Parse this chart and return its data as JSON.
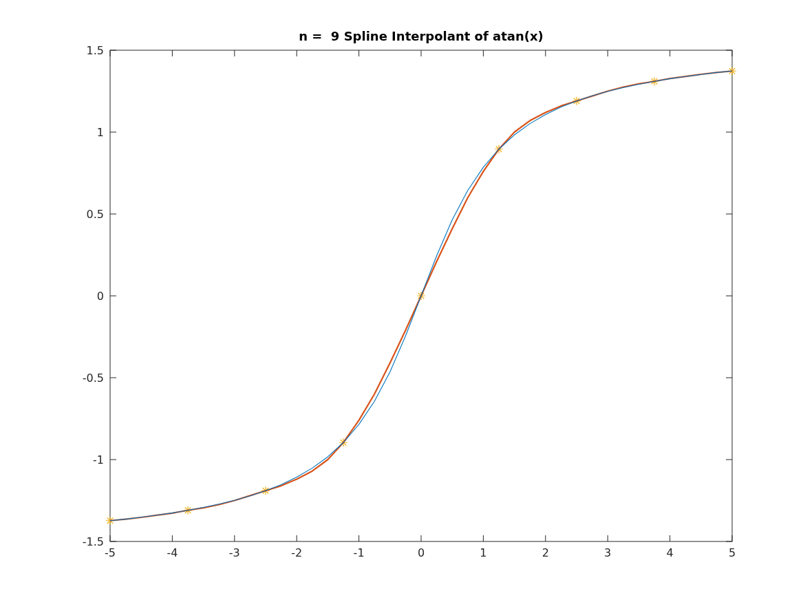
{
  "chart_data": {
    "type": "line",
    "title": "n =  9 Spline Interpolant of atan(x)",
    "x": [
      -5,
      -4.75,
      -4.5,
      -4.25,
      -4,
      -3.75,
      -3.5,
      -3.25,
      -3,
      -2.75,
      -2.5,
      -2.25,
      -2,
      -1.75,
      -1.5,
      -1.25,
      -1,
      -0.75,
      -0.5,
      -0.25,
      0,
      0.25,
      0.5,
      0.75,
      1,
      1.25,
      1.5,
      1.75,
      2,
      2.25,
      2.5,
      2.75,
      3,
      3.25,
      3.5,
      3.75,
      4,
      4.25,
      4.5,
      4.75,
      5
    ],
    "series": [
      {
        "color": "#0072bd",
        "values": [
          -1.373,
          -1.364,
          -1.352,
          -1.339,
          -1.326,
          -1.31,
          -1.292,
          -1.272,
          -1.249,
          -1.222,
          -1.19,
          -1.153,
          -1.107,
          -1.052,
          -0.983,
          -0.896,
          -0.785,
          -0.644,
          -0.464,
          -0.245,
          0,
          0.245,
          0.464,
          0.644,
          0.785,
          0.896,
          0.983,
          1.052,
          1.107,
          1.153,
          1.19,
          1.222,
          1.249,
          1.272,
          1.292,
          1.31,
          1.326,
          1.339,
          1.352,
          1.364,
          1.373
        ]
      },
      {
        "color": "#d95319",
        "values": [
          -1.373,
          -1.364,
          -1.353,
          -1.34,
          -1.327,
          -1.31,
          -1.295,
          -1.275,
          -1.25,
          -1.22,
          -1.19,
          -1.16,
          -1.12,
          -1.07,
          -1.0,
          -0.896,
          -0.76,
          -0.6,
          -0.41,
          -0.21,
          0,
          0.21,
          0.41,
          0.6,
          0.76,
          0.896,
          1.0,
          1.07,
          1.12,
          1.16,
          1.19,
          1.22,
          1.25,
          1.275,
          1.295,
          1.31,
          1.327,
          1.34,
          1.353,
          1.364,
          1.373
        ]
      },
      {
        "type": "scatter",
        "marker": "cross",
        "color": "#edb120",
        "x": [
          -5,
          -3.75,
          -2.5,
          -1.25,
          0,
          1.25,
          2.5,
          3.75,
          5
        ],
        "values": [
          -1.373,
          -1.31,
          -1.19,
          -0.896,
          0,
          0.896,
          1.19,
          1.31,
          1.373
        ]
      }
    ],
    "marker": "none",
    "line_style": "solid",
    "grid": false,
    "xlim": [
      -5,
      5
    ],
    "xticks": [
      -5,
      -4,
      -3,
      -2,
      -1,
      0,
      1,
      2,
      3,
      4,
      5
    ],
    "ylim": [
      -1.5,
      1.5
    ],
    "yticks": [
      -1.5,
      -1,
      -0.5,
      0,
      0.5,
      1,
      1.5
    ]
  }
}
